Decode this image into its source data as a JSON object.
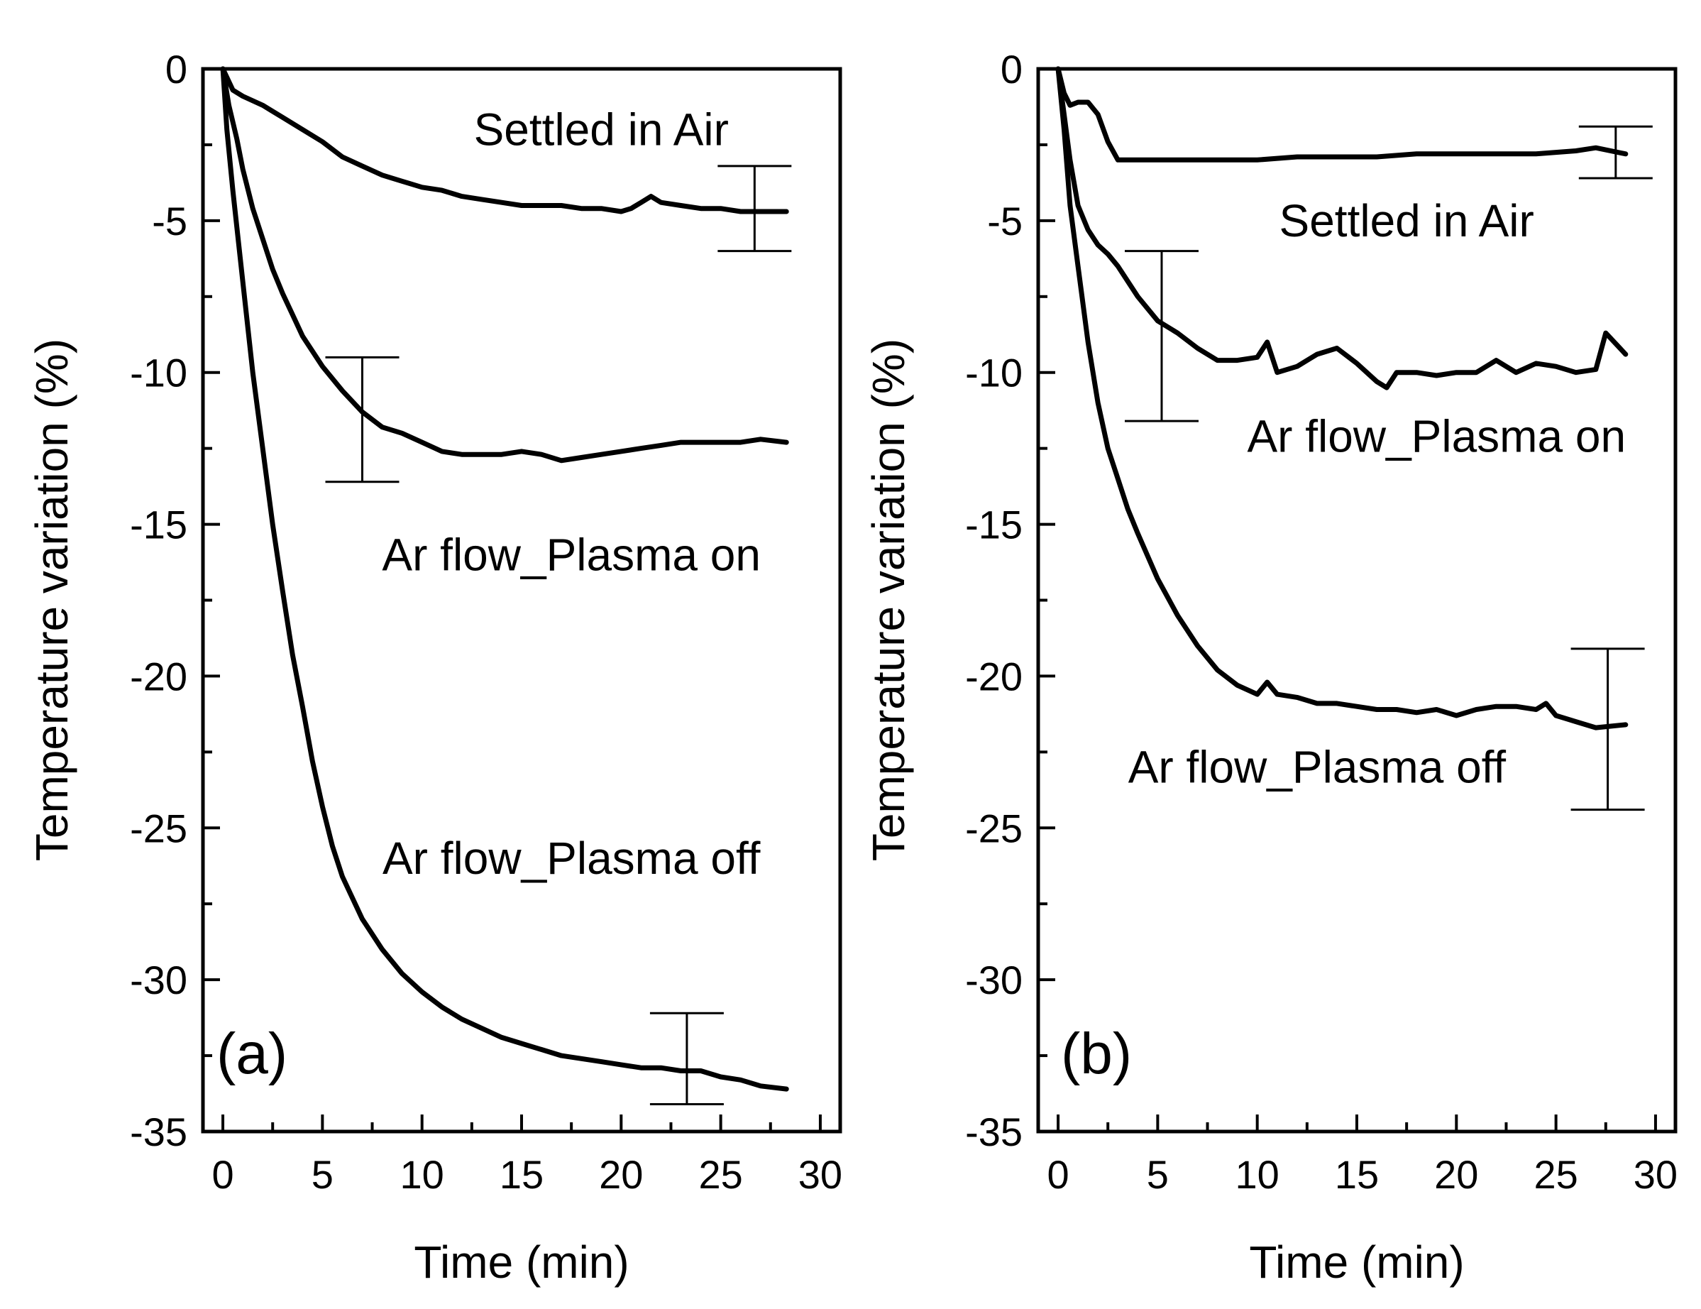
{
  "chart_data": [
    {
      "type": "line",
      "panel_label": "(a)",
      "xlabel": "Time (min)",
      "ylabel": "Temperature variation (%)",
      "xlim": [
        -1,
        31
      ],
      "ylim": [
        -35,
        0
      ],
      "xticks": [
        0,
        5,
        10,
        15,
        20,
        25,
        30
      ],
      "xtick_labels": [
        "0",
        "5",
        "10",
        "15",
        "20",
        "25",
        "30"
      ],
      "yticks": [
        0,
        -5,
        -10,
        -15,
        -20,
        -25,
        -30,
        -35
      ],
      "ytick_labels": [
        "0",
        "-5",
        "-10",
        "-15",
        "-20",
        "-25",
        "-30",
        "-35"
      ],
      "series": [
        {
          "name": "Settled in Air",
          "x": [
            0,
            0.5,
            1,
            2,
            3,
            4,
            5,
            6,
            7,
            8,
            9,
            10,
            11,
            12,
            13,
            14,
            15,
            16,
            17,
            18,
            19,
            20,
            20.5,
            21,
            21.5,
            22,
            23,
            24,
            25,
            26,
            27,
            28.3
          ],
          "y": [
            0,
            -0.7,
            -0.9,
            -1.2,
            -1.6,
            -2.0,
            -2.4,
            -2.9,
            -3.2,
            -3.5,
            -3.7,
            -3.9,
            -4.0,
            -4.2,
            -4.3,
            -4.4,
            -4.5,
            -4.5,
            -4.5,
            -4.6,
            -4.6,
            -4.7,
            -4.6,
            -4.4,
            -4.2,
            -4.4,
            -4.5,
            -4.6,
            -4.6,
            -4.7,
            -4.7,
            -4.7
          ]
        },
        {
          "name": "Ar flow_Plasma on",
          "x": [
            0,
            0.3,
            0.7,
            1,
            1.5,
            2,
            2.5,
            3,
            3.5,
            4,
            5,
            6,
            7,
            8,
            9,
            10,
            11,
            12,
            13,
            14,
            15,
            16,
            17,
            18,
            19,
            20,
            21,
            22,
            23,
            24,
            25,
            26,
            27,
            28.3
          ],
          "y": [
            0,
            -1.2,
            -2.3,
            -3.3,
            -4.6,
            -5.6,
            -6.6,
            -7.4,
            -8.1,
            -8.8,
            -9.8,
            -10.6,
            -11.3,
            -11.8,
            -12.0,
            -12.3,
            -12.6,
            -12.7,
            -12.7,
            -12.7,
            -12.6,
            -12.7,
            -12.9,
            -12.8,
            -12.7,
            -12.6,
            -12.5,
            -12.4,
            -12.3,
            -12.3,
            -12.3,
            -12.3,
            -12.2,
            -12.3
          ]
        },
        {
          "name": "Ar flow_Plasma off",
          "x": [
            0,
            0.2,
            0.5,
            1,
            1.5,
            2,
            2.5,
            3,
            3.5,
            4,
            4.5,
            5,
            5.5,
            6,
            7,
            8,
            9,
            10,
            11,
            12,
            13,
            14,
            15,
            16,
            17,
            18,
            19,
            20,
            21,
            22,
            23,
            24,
            25,
            26,
            27,
            28.3
          ],
          "y": [
            0,
            -2.0,
            -4.0,
            -7.0,
            -10.0,
            -12.5,
            -15.0,
            -17.2,
            -19.3,
            -21.0,
            -22.8,
            -24.3,
            -25.6,
            -26.6,
            -28.0,
            -29.0,
            -29.8,
            -30.4,
            -30.9,
            -31.3,
            -31.6,
            -31.9,
            -32.1,
            -32.3,
            -32.5,
            -32.6,
            -32.7,
            -32.8,
            -32.9,
            -32.9,
            -33.0,
            -33.0,
            -33.2,
            -33.3,
            -33.5,
            -33.6
          ]
        }
      ],
      "error_bars": [
        {
          "series": "Settled in Air",
          "x": 26.7,
          "y_low": -6.0,
          "y_high": -3.2
        },
        {
          "series": "Ar flow_Plasma on",
          "x": 7.0,
          "y_low": -13.6,
          "y_high": -9.5
        },
        {
          "series": "Ar flow_Plasma off",
          "x": 23.3,
          "y_low": -34.1,
          "y_high": -31.1
        }
      ],
      "annotations": [
        {
          "text": "Settled in Air",
          "x": 19,
          "y": -2.0
        },
        {
          "text": "Ar flow_Plasma on",
          "x": 17.5,
          "y": -16.0
        },
        {
          "text": "Ar flow_Plasma off",
          "x": 17.5,
          "y": -26.0
        }
      ]
    },
    {
      "type": "line",
      "panel_label": "(b)",
      "xlabel": "Time (min)",
      "ylabel": "Temperature variation (%)",
      "xlim": [
        -1,
        31
      ],
      "ylim": [
        -35,
        0
      ],
      "xticks": [
        0,
        5,
        10,
        15,
        20,
        25,
        30
      ],
      "xtick_labels": [
        "0",
        "5",
        "10",
        "15",
        "20",
        "25",
        "30"
      ],
      "yticks": [
        0,
        -5,
        -10,
        -15,
        -20,
        -25,
        -30,
        -35
      ],
      "ytick_labels": [
        "0",
        "-5",
        "-10",
        "-15",
        "-20",
        "-25",
        "-30",
        "-35"
      ],
      "series": [
        {
          "name": "Settled in Air",
          "x": [
            0,
            0.3,
            0.6,
            1.0,
            1.5,
            2.0,
            2.5,
            3.0,
            4,
            6,
            8,
            10,
            12,
            14,
            16,
            18,
            20,
            22,
            24,
            26,
            27,
            28.5
          ],
          "y": [
            0,
            -0.8,
            -1.2,
            -1.1,
            -1.1,
            -1.5,
            -2.4,
            -3.0,
            -3.0,
            -3.0,
            -3.0,
            -3.0,
            -2.9,
            -2.9,
            -2.9,
            -2.8,
            -2.8,
            -2.8,
            -2.8,
            -2.7,
            -2.6,
            -2.8
          ]
        },
        {
          "name": "Ar flow_Plasma on",
          "x": [
            0,
            0.3,
            0.6,
            1.0,
            1.5,
            2.0,
            2.5,
            3.0,
            4,
            5,
            6,
            7,
            8,
            9,
            10,
            10.5,
            11,
            12,
            13,
            14,
            15,
            16,
            16.5,
            17,
            18,
            19,
            20,
            21,
            22,
            23,
            24,
            25,
            26,
            27,
            27.5,
            28.5
          ],
          "y": [
            0,
            -1.5,
            -3.0,
            -4.5,
            -5.3,
            -5.8,
            -6.1,
            -6.5,
            -7.5,
            -8.3,
            -8.7,
            -9.2,
            -9.6,
            -9.6,
            -9.5,
            -9.0,
            -10.0,
            -9.8,
            -9.4,
            -9.2,
            -9.7,
            -10.3,
            -10.5,
            -10.0,
            -10.0,
            -10.1,
            -10.0,
            -10.0,
            -9.6,
            -10.0,
            -9.7,
            -9.8,
            -10.0,
            -9.9,
            -8.7,
            -9.4
          ]
        },
        {
          "name": "Ar flow_Plasma off",
          "x": [
            0,
            0.3,
            0.6,
            1.0,
            1.5,
            2.0,
            2.5,
            3,
            3.5,
            4,
            5,
            6,
            7,
            8,
            9,
            10,
            10.5,
            11,
            12,
            13,
            14,
            15,
            16,
            17,
            18,
            19,
            20,
            21,
            22,
            23,
            24,
            24.5,
            25,
            26,
            27,
            28.5
          ],
          "y": [
            0,
            -2.0,
            -4.5,
            -6.5,
            -9.0,
            -11.0,
            -12.5,
            -13.5,
            -14.5,
            -15.3,
            -16.8,
            -18.0,
            -19.0,
            -19.8,
            -20.3,
            -20.6,
            -20.2,
            -20.6,
            -20.7,
            -20.9,
            -20.9,
            -21.0,
            -21.1,
            -21.1,
            -21.2,
            -21.1,
            -21.3,
            -21.1,
            -21.0,
            -21.0,
            -21.1,
            -20.9,
            -21.3,
            -21.5,
            -21.7,
            -21.6
          ]
        }
      ],
      "error_bars": [
        {
          "series": "Settled in Air",
          "x": 28.0,
          "y_low": -3.6,
          "y_high": -1.9
        },
        {
          "series": "Ar flow_Plasma on",
          "x": 5.2,
          "y_low": -11.6,
          "y_high": -6.0
        },
        {
          "series": "Ar flow_Plasma off",
          "x": 27.6,
          "y_low": -24.4,
          "y_high": -19.1
        }
      ],
      "annotations": [
        {
          "text": "Settled in Air",
          "x": 17.5,
          "y": -5.0
        },
        {
          "text": "Ar flow_Plasma on",
          "x": 19,
          "y": -12.1
        },
        {
          "text": "Ar flow_Plasma off",
          "x": 13,
          "y": -23.0
        }
      ]
    }
  ]
}
